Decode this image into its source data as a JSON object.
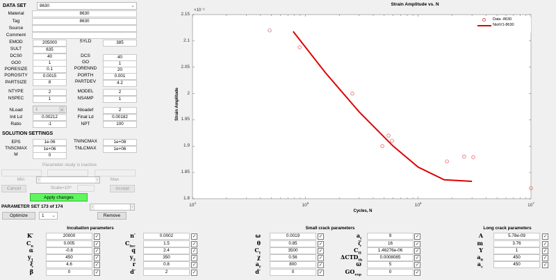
{
  "dataset": {
    "label": "DATA SET",
    "selected": "8630",
    "material_label": "Material",
    "material": "8630",
    "tag_label": "Tag",
    "tag": "8630",
    "source_label": "Source",
    "source": "",
    "comment_label": "Comment",
    "comment": "",
    "fields": [
      {
        "l1": "EMOD",
        "v1": "205000",
        "l2": "SYLD",
        "v2": "385"
      },
      {
        "l1": "SULT",
        "v1": "635",
        "l2": "",
        "v2": ""
      },
      {
        "l1": "DCS0",
        "v1": "40",
        "l2": "DCS",
        "v2": "40"
      },
      {
        "l1": "GO0",
        "v1": "1",
        "l2": "GO",
        "v2": "1"
      },
      {
        "l1": "PORESIZE",
        "v1": "0.1",
        "l2": "PORENND",
        "v2": "20"
      },
      {
        "l1": "POROSITY",
        "v1": "0.0015",
        "l2": "PORTH",
        "v2": "0.001"
      },
      {
        "l1": "PARTSIZE",
        "v1": "8",
        "l2": "PARTDEV",
        "v2": "4.2"
      },
      {
        "l1": "NTYPE",
        "v1": "2",
        "l2": "MODEL",
        "v2": "2"
      },
      {
        "l1": "NSPEC",
        "v1": "1",
        "l2": "NSAMP",
        "v2": "1"
      }
    ],
    "nload_label": "NLoad",
    "nload": "1",
    "nloadef_label": "Nloadef",
    "nloadef": "2",
    "initld_label": "Init Ld",
    "initld": "0.00212",
    "finalld_label": "Final Ld",
    "finalld": "0.00182",
    "ratio_label": "Ratio",
    "ratio": "-1",
    "npt_label": "NPT",
    "npt": "100"
  },
  "solution": {
    "title": "SOLUTION SETTINGS",
    "eps_label": "EPS",
    "eps": "1e-06",
    "tnincmax_label": "TNINCMAX",
    "tnincmax": "1e+08",
    "tnscmax_label": "TNSCMAX",
    "tnscmax": "1e+06",
    "tnlcmax_label": "TNLCMAX",
    "tnlcmax": "1e+06",
    "m_label": "M",
    "m": "0"
  },
  "param_study": {
    "status": "Parameter study is inactive",
    "min_label": "Min",
    "max_label": "Max",
    "cancel": "Cancel",
    "scale": "Scale=10^",
    "accept": "Accept",
    "apply": "Apply changes"
  },
  "param_set": {
    "label": "PARAMETER SET 173 of 174",
    "optimize": "Optimize",
    "opt_value": "1",
    "remove": "Remove"
  },
  "incubation": {
    "title": "Incubation parameters",
    "left": [
      {
        "sym": "K′",
        "val": "20000"
      },
      {
        "sym": "C",
        "sub": "n",
        "val": "0.005"
      },
      {
        "sym": "α",
        "val": "-0.8"
      },
      {
        "sym": "y",
        "sub": "1",
        "val": "450"
      },
      {
        "sym": "ξ",
        "val": "4.6"
      },
      {
        "sym": "β",
        "val": "0"
      }
    ],
    "right": [
      {
        "sym": "n′",
        "val": "0.0002"
      },
      {
        "sym": "C",
        "sub": "inc",
        "val": "1.5"
      },
      {
        "sym": "q",
        "val": "2.4"
      },
      {
        "sym": "y",
        "sub": "2",
        "val": "350"
      },
      {
        "sym": "r",
        "val": "0.8"
      },
      {
        "sym": "d′",
        "val": "2"
      }
    ]
  },
  "small_crack": {
    "title": "Small crack parameters",
    "left": [
      {
        "sym": "ω",
        "val": "0.0019"
      },
      {
        "sym": "θ",
        "val": "0.85"
      },
      {
        "sym": "C",
        "sub": "I",
        "val": "3500"
      },
      {
        "sym": "χ",
        "val": "0.56"
      },
      {
        "sym": "a",
        "sub": "f",
        "val": "800"
      },
      {
        "sym": "d′",
        "val": "0"
      }
    ],
    "right": [
      {
        "sym": "a",
        "sub": "i",
        "val": "9"
      },
      {
        "sym": "ζ",
        "val": "16"
      },
      {
        "sym": "C",
        "sub": "II",
        "val": "1.46276e-06"
      },
      {
        "sym": "ΔCTD",
        "sub": "th",
        "val": "0.0008085"
      },
      {
        "sym": "ϖ",
        "val": "5"
      },
      {
        "sym": "GO",
        "sub": "exp",
        "val": "0"
      }
    ]
  },
  "long_crack": {
    "title": "Long crack parameters",
    "items": [
      {
        "sym": "A",
        "val": "5.78e-09"
      },
      {
        "sym": "m",
        "val": "3.76"
      },
      {
        "sym": "Y",
        "val": "1"
      },
      {
        "sym": "a",
        "sub": "0",
        "val": "450"
      },
      {
        "sym": "a",
        "sub": "c",
        "val": "450"
      }
    ]
  },
  "chart_data": {
    "type": "scatter",
    "title": "Strain Amplitude vs. N",
    "xlabel": "Cycles, N",
    "ylabel": "Strain Amplitude",
    "y_multiplier": "×10⁻³",
    "xscale": "log",
    "xlim": [
      10000,
      10000000
    ],
    "ylim": [
      1.8,
      2.15
    ],
    "xticks": [
      "10^4",
      "10^5",
      "10^6",
      "10^7"
    ],
    "yticks": [
      "1.8",
      "1.85",
      "1.9",
      "1.95",
      "2",
      "2.05",
      "2.1",
      "2.15"
    ],
    "legend": [
      "Data -8630",
      "NiotV1-8630"
    ],
    "series": [
      {
        "name": "Data -8630",
        "style": "red-circle-markers",
        "x": [
          48300,
          89000,
          261000,
          481000,
          546000,
          586000,
          1800000,
          2560000,
          3080000,
          10000000
        ],
        "y": [
          2.12,
          2.088,
          2.0,
          1.9,
          1.92,
          1.91,
          1.871,
          1.88,
          1.879,
          1.82
        ]
      },
      {
        "name": "NiotV1-8630",
        "style": "red-line",
        "x": [
          78000,
          150000,
          300000,
          600000,
          1000000,
          1700000,
          3000000
        ],
        "y": [
          2.118,
          2.04,
          1.965,
          1.9,
          1.86,
          1.836,
          1.833
        ]
      }
    ]
  }
}
